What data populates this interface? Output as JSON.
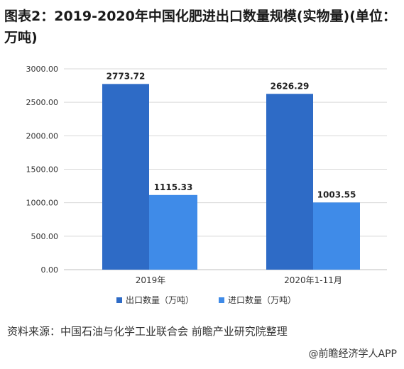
{
  "title": "图表2：2019-2020年中国化肥进出口数量规模(实物量)(单位：万吨)",
  "source": "资料来源：中国石油与化学工业联合会 前瞻产业研究院整理",
  "credit": "@前瞻经济学人APP",
  "colors": {
    "export": "#2e6bc6",
    "import": "#3f8be8",
    "grid": "#d9d9d9",
    "axis": "#bfbfbf",
    "text": "#333333"
  },
  "chart_data": {
    "type": "bar",
    "categories": [
      "2019年",
      "2020年1-11月"
    ],
    "series": [
      {
        "name": "出口数量（万吨）",
        "values": [
          2773.72,
          2626.29
        ],
        "labels": [
          "2773.72",
          "2626.29"
        ]
      },
      {
        "name": "进口数量（万吨）",
        "values": [
          1115.33,
          1003.55
        ],
        "labels": [
          "1115.33",
          "1003.55"
        ]
      }
    ],
    "ylim": [
      0,
      3000
    ],
    "yticks": [
      "0.00",
      "500.00",
      "1000.00",
      "1500.00",
      "2000.00",
      "2500.00",
      "3000.00"
    ],
    "grid": true,
    "legend": "bottom"
  }
}
